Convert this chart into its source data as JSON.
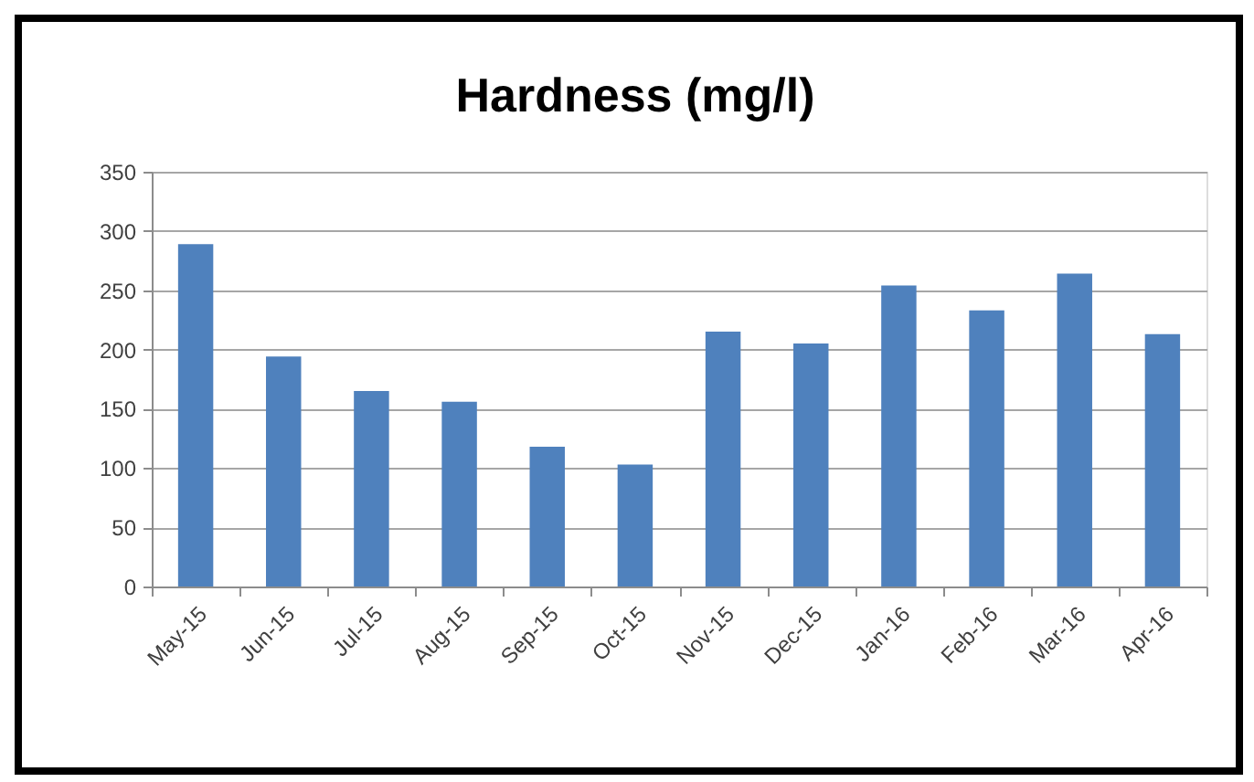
{
  "chart_data": {
    "type": "bar",
    "title": "Hardness (mg/l)",
    "categories": [
      "May-15",
      "Jun-15",
      "Jul-15",
      "Aug-15",
      "Sep-15",
      "Oct-15",
      "Nov-15",
      "Dec-15",
      "Jan-16",
      "Feb-16",
      "Mar-16",
      "Apr-16"
    ],
    "values": [
      289,
      194,
      165,
      156,
      118,
      103,
      215,
      205,
      254,
      233,
      264,
      213
    ],
    "color": "#4f81bd",
    "ylim": [
      0,
      350
    ],
    "yticks": [
      0,
      50,
      100,
      150,
      200,
      250,
      300,
      350
    ],
    "grid": "y"
  }
}
